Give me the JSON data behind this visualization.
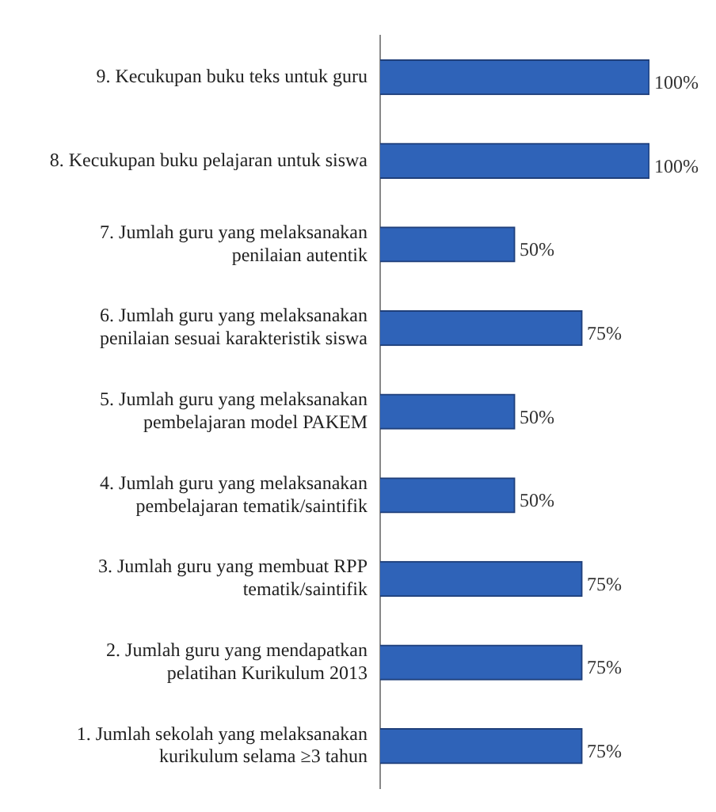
{
  "chart_data": {
    "type": "bar",
    "orientation": "horizontal",
    "categories": [
      "9. Kecukupan buku teks untuk guru",
      "8. Kecukupan buku pelajaran untuk siswa",
      "7. Jumlah guru yang melaksanakan penilaian autentik",
      "6. Jumlah guru yang melaksanakan penilaian sesuai karakteristik siswa",
      "5. Jumlah guru yang melaksanakan pembelajaran model PAKEM",
      "4. Jumlah guru yang melaksanakan pembelajaran tematik/saintifik",
      "3. Jumlah guru yang membuat RPP tematik/saintifik",
      "2. Jumlah guru yang mendapatkan pelatihan Kurikulum 2013",
      "1. Jumlah sekolah yang melaksanakan kurikulum selama ≥3 tahun"
    ],
    "values": [
      100,
      100,
      50,
      75,
      50,
      50,
      75,
      75,
      75
    ],
    "value_labels": [
      "100%",
      "100%",
      "50%",
      "75%",
      "50%",
      "50%",
      "75%",
      "75%",
      "75%"
    ],
    "color": "#2f63b8",
    "grid": false,
    "legend": false
  }
}
